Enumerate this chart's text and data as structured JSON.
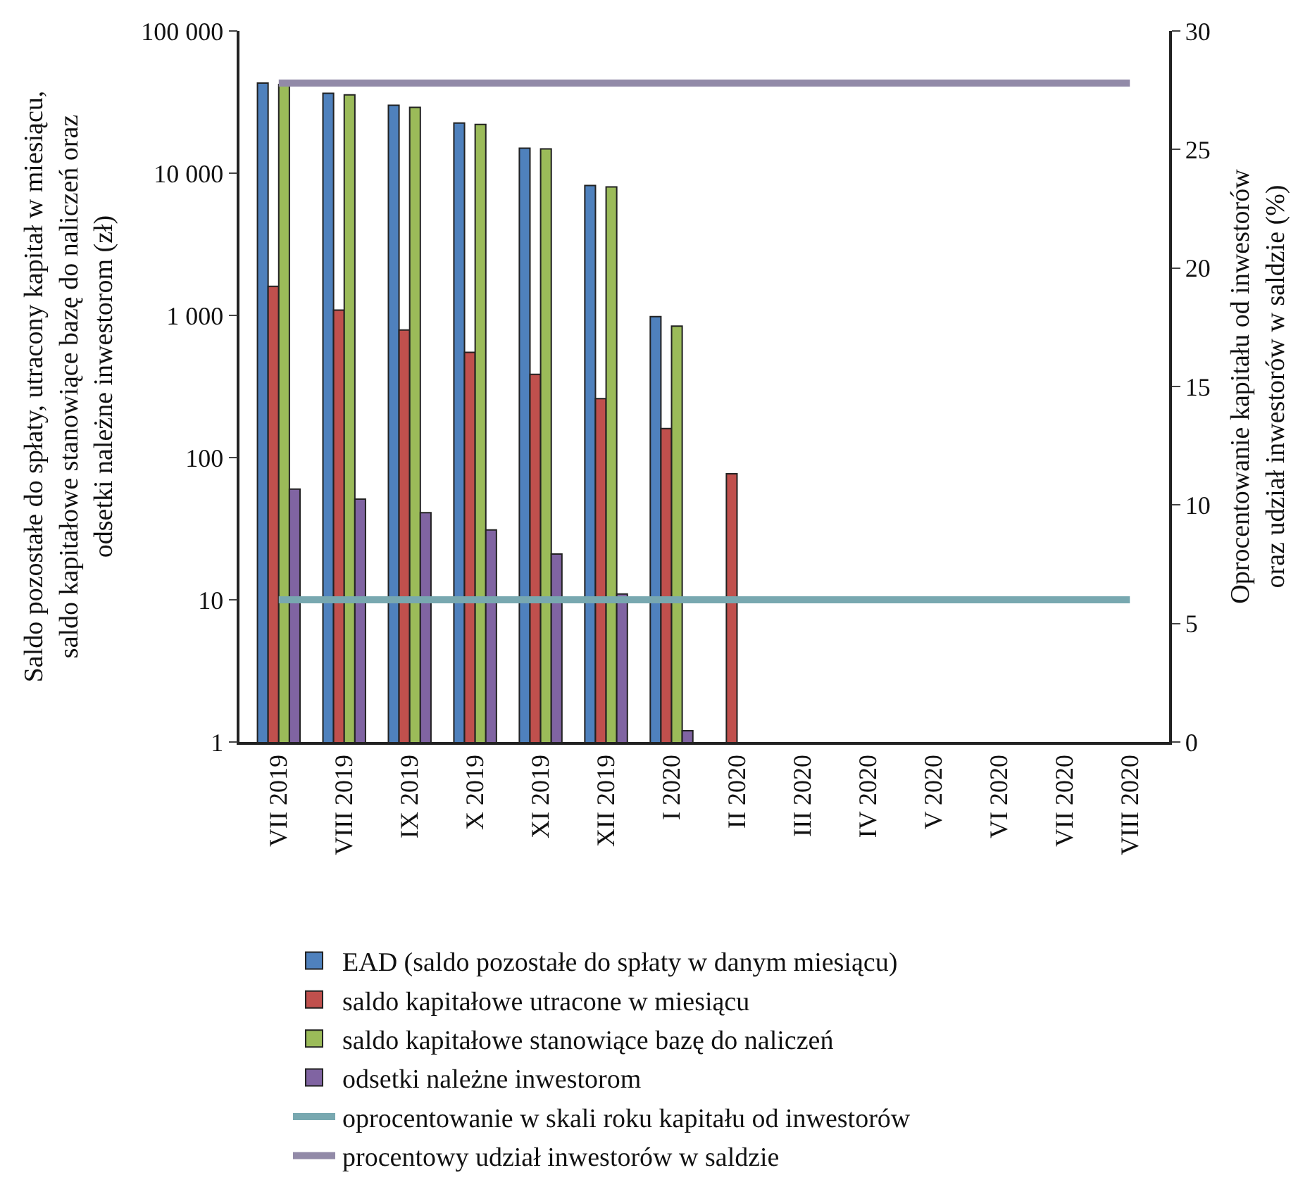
{
  "chart_data": {
    "type": "bar",
    "ylabel": "Saldo pozostałe do spłaty, utracony kapitał w miesiącu,\nsaldo kapitałowe stanowiące bazę do naliczeń oraz\nodsetki należne inwestorom (zł)",
    "y2label": "Oprocentowanie kapitału od inwestorów\noraz udział inwestorów w saldzie (%)",
    "categories": [
      "VII 2019",
      "VIII 2019",
      "IX 2019",
      "X 2019",
      "XI 2019",
      "XII 2019",
      "I 2020",
      "II 2020",
      "III 2020",
      "IV 2020",
      "V 2020",
      "VI 2020",
      "VII 2020",
      "VIII 2020"
    ],
    "series": [
      {
        "name": "EAD (saldo pozostałe do spłaty w danym miesiącu)",
        "color": "#4f81bd",
        "values": [
          43000,
          36500,
          30000,
          22500,
          15000,
          8200,
          980,
          null,
          null,
          null,
          null,
          null,
          null,
          null
        ]
      },
      {
        "name": "saldo kapitałowe utracone w miesiącu",
        "color": "#c0504d",
        "values": [
          1600,
          1090,
          790,
          550,
          385,
          260,
          160,
          77,
          null,
          null,
          null,
          null,
          null,
          null
        ]
      },
      {
        "name": "saldo kapitałowe stanowiące bazę do naliczeń",
        "color": "#9bbb59",
        "values": [
          42000,
          35500,
          29000,
          22000,
          14800,
          8000,
          840,
          null,
          null,
          null,
          null,
          null,
          null,
          null
        ]
      },
      {
        "name": "odsetki należne inwestorom",
        "color": "#8064a2",
        "values": [
          60,
          51,
          41,
          31,
          21,
          11,
          1.2,
          null,
          null,
          null,
          null,
          null,
          null,
          null
        ]
      },
      {
        "name": "oprocentowanie w skali roku kapitału od inwestorów",
        "color": "#78a8b0",
        "type": "line",
        "axis": "y2",
        "values": [
          6,
          6,
          6,
          6,
          6,
          6,
          6,
          6,
          6,
          6,
          6,
          6,
          6,
          6
        ]
      },
      {
        "name": "procentowy udział inwestorów w saldzie",
        "color": "#928aa8",
        "type": "line",
        "axis": "y2",
        "values": [
          27.8,
          27.8,
          27.8,
          27.8,
          27.8,
          27.8,
          27.8,
          27.8,
          27.8,
          27.8,
          27.8,
          27.8,
          27.8,
          27.8
        ]
      }
    ],
    "log": "y",
    "ylim": [
      1,
      100000
    ],
    "yticks": [
      1,
      10,
      100,
      {
        "value": 1000,
        "label": "1 000"
      },
      {
        "value": 10000,
        "label": "10 000"
      },
      {
        "value": 100000,
        "label": "100 000"
      }
    ],
    "y2lim": [
      0,
      30
    ],
    "y2ticks": [
      0,
      5,
      10,
      15,
      20,
      25,
      30
    ],
    "legend": "bottom",
    "marker": "none",
    "line_style": "solid"
  }
}
